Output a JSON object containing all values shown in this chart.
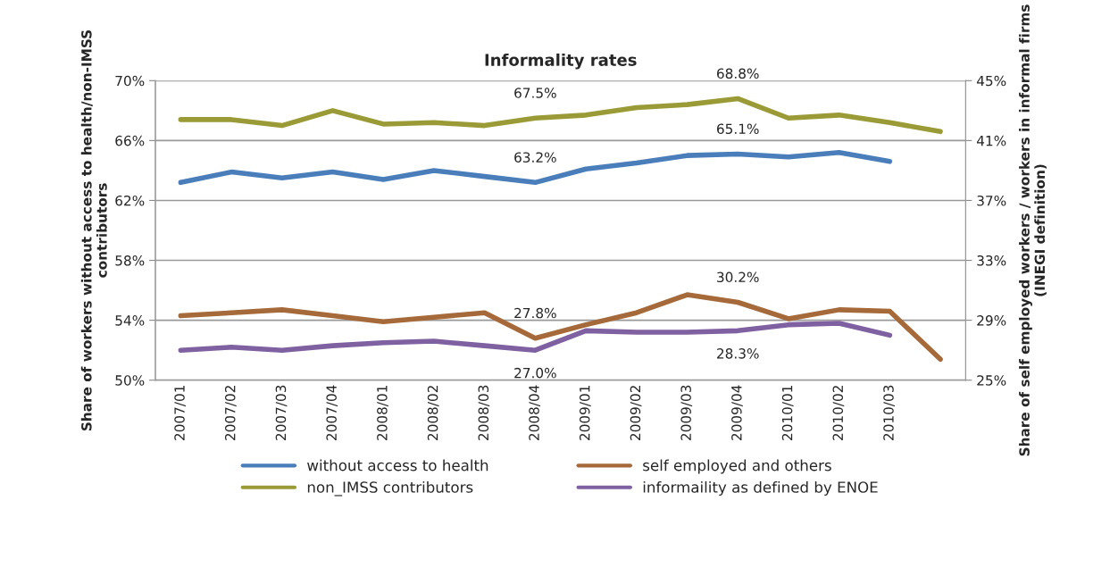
{
  "chart_data": {
    "type": "line",
    "title": "Informality rates",
    "ylabel": "Share of workers without access to health/non-IMSS contributors",
    "y2label": "Share of self employed workers / workers in informal firms (INEGI definition)",
    "categories": [
      "2007/01",
      "2007/02",
      "2007/03",
      "2007/04",
      "2008/01",
      "2008/02",
      "2008/03",
      "2008/04",
      "2009/01",
      "2009/02",
      "2009/03",
      "2009/04",
      "2010/01",
      "2010/02",
      "2010/03",
      null
    ],
    "series": [
      {
        "name": "without access to health",
        "color": "#4a7ebb",
        "values": [
          63.2,
          63.9,
          63.5,
          63.9,
          63.4,
          64.0,
          63.6,
          63.2,
          64.1,
          64.5,
          65.0,
          65.1,
          64.9,
          65.2,
          64.6,
          null
        ],
        "value_labels": [
          null,
          null,
          null,
          null,
          null,
          null,
          null,
          "63.2%",
          null,
          null,
          null,
          "65.1%",
          null,
          null,
          null,
          null
        ]
      },
      {
        "name": "non_IMSS contributors",
        "color": "#9a9b36",
        "values": [
          67.4,
          67.4,
          67.0,
          68.0,
          67.1,
          67.2,
          67.0,
          67.5,
          67.7,
          68.2,
          68.4,
          68.8,
          67.5,
          67.7,
          67.2,
          66.6
        ],
        "value_labels": [
          null,
          null,
          null,
          null,
          null,
          null,
          null,
          "67.5%",
          null,
          null,
          null,
          "68.8%",
          null,
          null,
          null,
          null
        ]
      },
      {
        "name": "self employed and others",
        "color": "#a5693a",
        "axis": "y2",
        "values": [
          29.3,
          29.5,
          29.7,
          29.3,
          28.9,
          29.2,
          29.5,
          27.8,
          28.7,
          29.5,
          30.7,
          30.2,
          29.1,
          29.7,
          29.6,
          26.4
        ],
        "value_labels": [
          null,
          null,
          null,
          null,
          null,
          null,
          null,
          "27.8%",
          null,
          null,
          null,
          "30.2%",
          null,
          null,
          null,
          null
        ]
      },
      {
        "name": "informaility as defined by ENOE",
        "color": "#7f60a0",
        "axis": "y2",
        "values": [
          27.0,
          27.2,
          27.0,
          27.3,
          27.5,
          27.6,
          27.3,
          27.0,
          28.3,
          28.2,
          28.2,
          28.3,
          28.7,
          28.8,
          28.0,
          null
        ],
        "value_labels": [
          null,
          null,
          null,
          null,
          null,
          null,
          null,
          "27.0%",
          null,
          null,
          null,
          "28.3%",
          null,
          null,
          null,
          null
        ]
      }
    ],
    "ylim": [
      50,
      70
    ],
    "yticks": [
      {
        "value": 50,
        "label": "50%"
      },
      {
        "value": 54,
        "label": "54%"
      },
      {
        "value": 58,
        "label": "58%"
      },
      {
        "value": 62,
        "label": "62%"
      },
      {
        "value": 66,
        "label": "66%"
      },
      {
        "value": 70,
        "label": "70%"
      }
    ],
    "y2lim": [
      25,
      45
    ],
    "y2ticks": [
      {
        "value": 25,
        "label": "25%"
      },
      {
        "value": 29,
        "label": "29%"
      },
      {
        "value": 33,
        "label": "33%"
      },
      {
        "value": 37,
        "label": "37%"
      },
      {
        "value": 41,
        "label": "41%"
      },
      {
        "value": 45,
        "label": "45%"
      }
    ],
    "grid": "y",
    "legend": "bottom",
    "marker": "none",
    "line_style": "solid"
  }
}
